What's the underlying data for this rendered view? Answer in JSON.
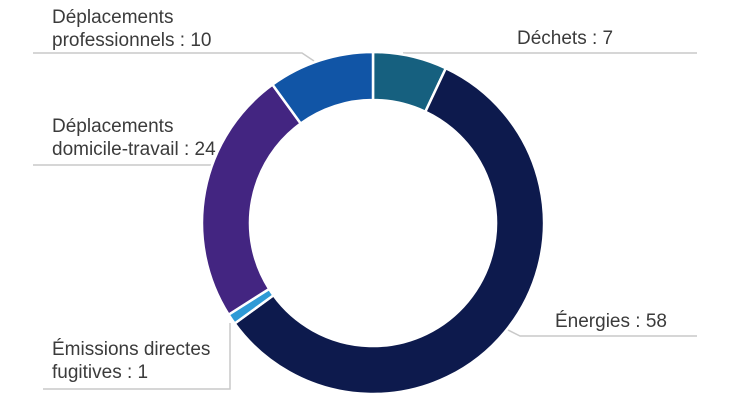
{
  "chart_data": {
    "type": "pie",
    "subtype": "donut",
    "title": "",
    "legend": "none",
    "direction": "clockwise",
    "start_angle_deg": 0,
    "inner_radius_ratio": 0.72,
    "total": 100,
    "categories": [
      "Déchets",
      "Énergies",
      "Émissions directes fugitives",
      "Déplacements domicile-travail",
      "Déplacements professionnels"
    ],
    "values": [
      7,
      58,
      1,
      24,
      10
    ],
    "colors": [
      "#16607F",
      "#0D1A4D",
      "#2F9AD6",
      "#432581",
      "#1155A6"
    ],
    "slice_ids": [
      "dechets",
      "energies",
      "emissions-directes-fugitives",
      "deplacements-domicile-travail",
      "deplacements-professionnels"
    ],
    "labels": [
      {
        "lines": [
          "Déchets : 7"
        ]
      },
      {
        "lines": [
          "Énergies : 58"
        ]
      },
      {
        "lines": [
          "Émissions directes",
          "fugitives : 1"
        ]
      },
      {
        "lines": [
          "Déplacements",
          "domicile-travail : 24"
        ]
      },
      {
        "lines": [
          "Déplacements",
          "professionnels : 10"
        ]
      }
    ],
    "gap_color": "#ffffff",
    "text_color": "#3b3b3b",
    "leader_line_color": "#c9c9c9"
  }
}
